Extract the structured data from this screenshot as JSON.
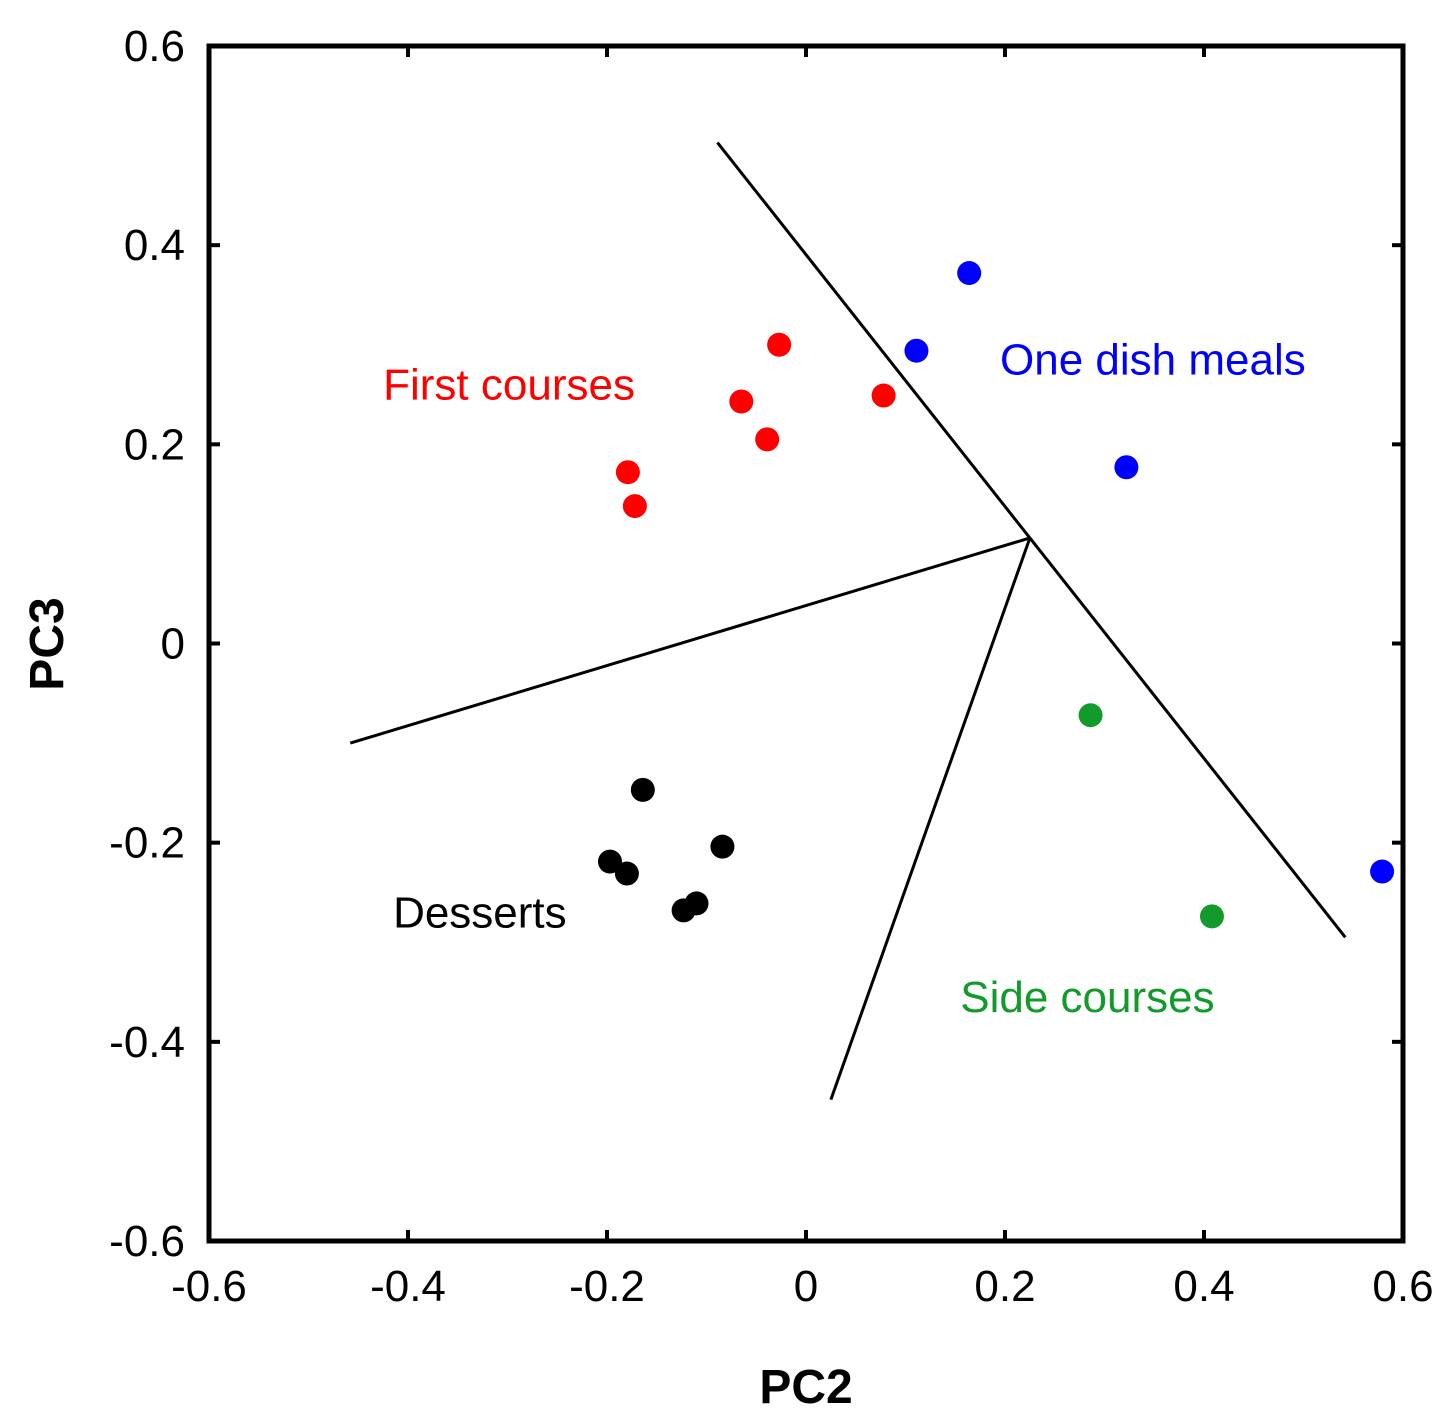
{
  "chart_data": {
    "type": "scatter",
    "title": "",
    "xlabel": "PC2",
    "ylabel": "PC3",
    "xlim": [
      -0.6,
      0.6
    ],
    "ylim": [
      -0.6,
      0.6
    ],
    "xticks": [
      -0.6,
      -0.4,
      -0.2,
      0,
      0.2,
      0.4,
      0.6
    ],
    "yticks": [
      -0.6,
      -0.4,
      -0.2,
      0,
      0.2,
      0.4,
      0.6
    ],
    "xtick_labels": [
      "-0.6",
      "-0.4",
      "-0.2",
      "0",
      "0.2",
      "0.4",
      "0.6"
    ],
    "ytick_labels": [
      "-0.6",
      "-0.4",
      "-0.2",
      "0",
      "0.2",
      "0.4",
      "0.6"
    ],
    "grid": false,
    "series": [
      {
        "name": "First courses",
        "color": "#ff0000",
        "points": [
          [
            -0.027,
            0.3
          ],
          [
            -0.065,
            0.243
          ],
          [
            -0.039,
            0.205
          ],
          [
            0.078,
            0.249
          ],
          [
            -0.179,
            0.172
          ],
          [
            -0.172,
            0.138
          ]
        ]
      },
      {
        "name": "One dish meals",
        "color": "#0000ff",
        "points": [
          [
            0.164,
            0.372
          ],
          [
            0.111,
            0.294
          ],
          [
            0.322,
            0.177
          ],
          [
            0.579,
            -0.229
          ]
        ]
      },
      {
        "name": "Side courses",
        "color": "#129a2b",
        "points": [
          [
            0.286,
            -0.072
          ],
          [
            0.408,
            -0.274
          ]
        ]
      },
      {
        "name": "Desserts",
        "color": "#000000",
        "points": [
          [
            -0.164,
            -0.147
          ],
          [
            -0.084,
            -0.204
          ],
          [
            -0.197,
            -0.219
          ],
          [
            -0.18,
            -0.231
          ],
          [
            -0.11,
            -0.261
          ],
          [
            -0.123,
            -0.268
          ]
        ]
      }
    ],
    "annotations": [
      {
        "text": "First courses",
        "x": -0.425,
        "y": 0.245,
        "color": "#ff0000"
      },
      {
        "text": "One dish meals",
        "x": 0.195,
        "y": 0.27,
        "color": "#0000ff"
      },
      {
        "text": "Side courses",
        "x": 0.155,
        "y": -0.37,
        "color": "#129a2b"
      },
      {
        "text": "Desserts",
        "x": -0.415,
        "y": -0.285,
        "color": "#000000"
      }
    ],
    "boundary_lines": [
      [
        [
          -0.089,
          0.503
        ],
        [
          0.225,
          0.106
        ]
      ],
      [
        [
          0.225,
          0.106
        ],
        [
          0.542,
          -0.295
        ]
      ],
      [
        [
          0.225,
          0.106
        ],
        [
          -0.458,
          -0.1
        ]
      ],
      [
        [
          0.225,
          0.106
        ],
        [
          0.025,
          -0.458
        ]
      ]
    ]
  }
}
